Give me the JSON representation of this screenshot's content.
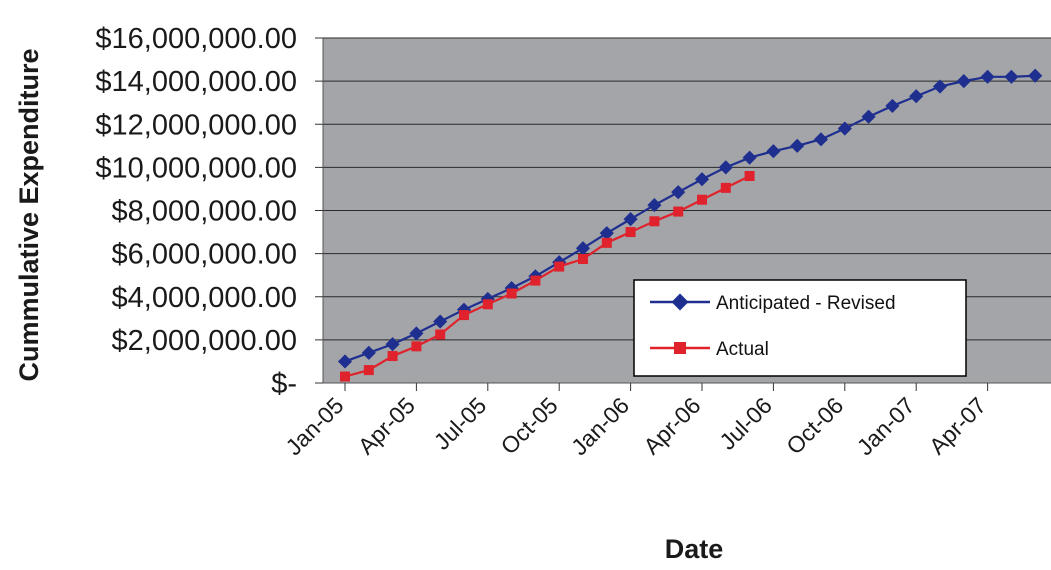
{
  "chart_data": {
    "type": "line",
    "title": "",
    "xlabel": "Date",
    "ylabel": "Cummulative Expenditure",
    "ylim": [
      0,
      16000000
    ],
    "y_ticks": [
      {
        "value": 0,
        "label": "$-"
      },
      {
        "value": 2000000,
        "label": "$2,000,000.00"
      },
      {
        "value": 4000000,
        "label": "$4,000,000.00"
      },
      {
        "value": 6000000,
        "label": "$6,000,000.00"
      },
      {
        "value": 8000000,
        "label": "$8,000,000.00"
      },
      {
        "value": 10000000,
        "label": "$10,000,000.00"
      },
      {
        "value": 12000000,
        "label": "$12,000,000.00"
      },
      {
        "value": 14000000,
        "label": "$14,000,000.00"
      },
      {
        "value": 16000000,
        "label": "$16,000,000.00"
      }
    ],
    "x_ticks": [
      "Jan-05",
      "Apr-05",
      "Jul-05",
      "Oct-05",
      "Jan-06",
      "Apr-06",
      "Jul-06",
      "Oct-06",
      "Jan-07",
      "Apr-07"
    ],
    "x_range": [
      "Jan-05",
      "Jun-07"
    ],
    "grid": true,
    "plot_background": "#a3a5a9",
    "legend_placement": "lower-right inside plot",
    "series": [
      {
        "name": "Anticipated - Revised",
        "color": "#1f2f8f",
        "marker": "diamond",
        "x": [
          "Jan-05",
          "Feb-05",
          "Mar-05",
          "Apr-05",
          "May-05",
          "Jun-05",
          "Jul-05",
          "Aug-05",
          "Sep-05",
          "Oct-05",
          "Nov-05",
          "Dec-05",
          "Jan-06",
          "Feb-06",
          "Mar-06",
          "Apr-06",
          "May-06",
          "Jun-06",
          "Jul-06",
          "Aug-06",
          "Sep-06",
          "Oct-06",
          "Nov-06",
          "Dec-06",
          "Jan-07",
          "Feb-07",
          "Mar-07",
          "Apr-07",
          "May-07",
          "Jun-07"
        ],
        "values": [
          1000000,
          1400000,
          1800000,
          2300000,
          2850000,
          3400000,
          3900000,
          4400000,
          4950000,
          5600000,
          6250000,
          6950000,
          7600000,
          8250000,
          8850000,
          9450000,
          10000000,
          10450000,
          10750000,
          11000000,
          11300000,
          11800000,
          12350000,
          12850000,
          13300000,
          13750000,
          14000000,
          14200000,
          14200000,
          14250000
        ]
      },
      {
        "name": "Actual",
        "color": "#e0222c",
        "marker": "square",
        "x": [
          "Jan-05",
          "Feb-05",
          "Mar-05",
          "Apr-05",
          "May-05",
          "Jun-05",
          "Jul-05",
          "Aug-05",
          "Sep-05",
          "Oct-05",
          "Nov-05",
          "Dec-05",
          "Jan-06",
          "Feb-06",
          "Mar-06",
          "Apr-06",
          "May-06",
          "Jun-06"
        ],
        "values": [
          300000,
          600000,
          1250000,
          1700000,
          2250000,
          3150000,
          3650000,
          4150000,
          4750000,
          5400000,
          5750000,
          6500000,
          7000000,
          7500000,
          7950000,
          8500000,
          9050000,
          9600000
        ]
      }
    ]
  }
}
